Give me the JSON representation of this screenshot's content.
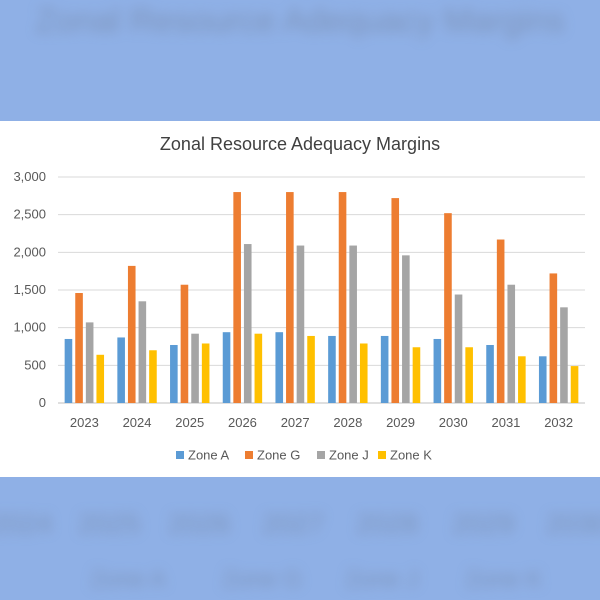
{
  "chart_data": {
    "type": "bar",
    "title": "Zonal Resource Adequacy Margins",
    "categories": [
      "2023",
      "2024",
      "2025",
      "2026",
      "2027",
      "2028",
      "2029",
      "2030",
      "2031",
      "2032"
    ],
    "ylim": [
      0,
      3000
    ],
    "yticks": [
      0,
      500,
      1000,
      1500,
      2000,
      2500,
      3000
    ],
    "ytick_labels": [
      "0",
      "500",
      "1,000",
      "1,500",
      "2,000",
      "2,500",
      "3,000"
    ],
    "grid": true,
    "legend_position": "bottom",
    "series": [
      {
        "name": "Zone A",
        "color": "#5b9bd5",
        "values": [
          850,
          870,
          770,
          940,
          940,
          890,
          890,
          850,
          770,
          620
        ]
      },
      {
        "name": "Zone G",
        "color": "#ed7d31",
        "values": [
          1460,
          1820,
          1570,
          2800,
          2800,
          2800,
          2720,
          2520,
          2170,
          1720
        ]
      },
      {
        "name": "Zone J",
        "color": "#a5a5a5",
        "values": [
          1070,
          1350,
          920,
          2110,
          2090,
          2090,
          1960,
          1440,
          1570,
          1270
        ]
      },
      {
        "name": "Zone K",
        "color": "#ffc000",
        "values": [
          640,
          700,
          790,
          920,
          890,
          790,
          740,
          740,
          620,
          490
        ]
      }
    ]
  }
}
